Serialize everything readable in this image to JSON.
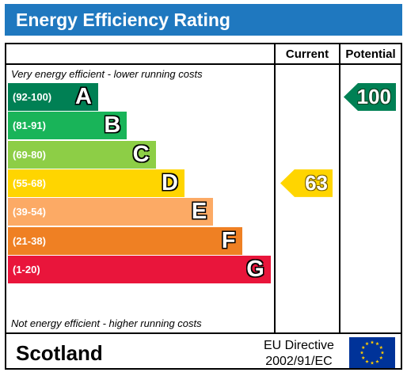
{
  "title": "Energy Efficiency Rating",
  "headers": {
    "current": "Current",
    "potential": "Potential"
  },
  "notes": {
    "top": "Very energy efficient - lower running costs",
    "bottom": "Not energy efficient - higher running costs"
  },
  "colors": {
    "title_bar": "#1f78bf",
    "A": "#008054",
    "B": "#19b459",
    "C": "#8dce46",
    "D": "#ffd500",
    "E": "#fcaa65",
    "F": "#ef8023",
    "G": "#e9153b"
  },
  "chart_data": {
    "type": "bar",
    "bands": [
      {
        "range": "(92-100)",
        "letter": "A",
        "min": 92,
        "max": 100
      },
      {
        "range": "(81-91)",
        "letter": "B",
        "min": 81,
        "max": 91
      },
      {
        "range": "(69-80)",
        "letter": "C",
        "min": 69,
        "max": 80
      },
      {
        "range": "(55-68)",
        "letter": "D",
        "min": 55,
        "max": 68
      },
      {
        "range": "(39-54)",
        "letter": "E",
        "min": 39,
        "max": 54
      },
      {
        "range": "(21-38)",
        "letter": "F",
        "min": 21,
        "max": 38
      },
      {
        "range": "(1-20)",
        "letter": "G",
        "min": 1,
        "max": 20
      }
    ],
    "current": {
      "value": "63",
      "band": "D"
    },
    "potential": {
      "value": "100",
      "band": "A"
    }
  },
  "footer": {
    "region": "Scotland",
    "directive_line1": "EU Directive",
    "directive_line2": "2002/91/EC",
    "flag_icon": "eu-flag-icon"
  }
}
